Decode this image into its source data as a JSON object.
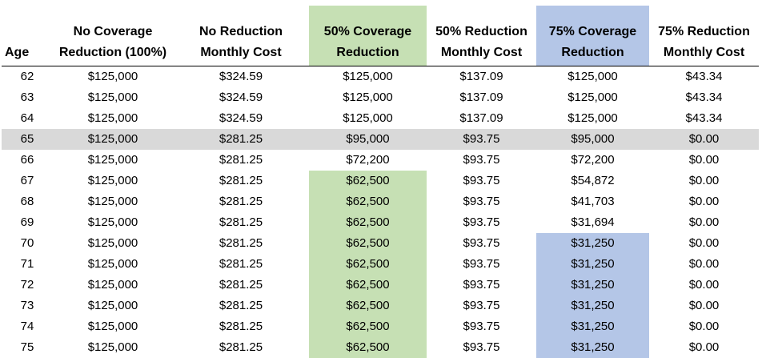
{
  "headers": [
    {
      "lines": [
        "Age"
      ],
      "class": "age"
    },
    {
      "lines": [
        "No Coverage",
        "Reduction (100%)"
      ],
      "class": ""
    },
    {
      "lines": [
        "No Reduction",
        "Monthly Cost"
      ],
      "class": ""
    },
    {
      "lines": [
        "50% Coverage",
        "Reduction"
      ],
      "class": "hdr-green"
    },
    {
      "lines": [
        "50% Reduction",
        "Monthly Cost"
      ],
      "class": ""
    },
    {
      "lines": [
        "75% Coverage",
        "Reduction"
      ],
      "class": "hdr-blue"
    },
    {
      "lines": [
        "75% Reduction",
        "Monthly Cost"
      ],
      "class": ""
    }
  ],
  "colors": {
    "green": "#c6e0b4",
    "blue": "#b4c6e7",
    "highlight_row": "#d9d9d9"
  },
  "rows": [
    {
      "cells": [
        "62",
        "$125,000",
        "$324.59",
        "$125,000",
        "$137.09",
        "$125,000",
        "$43.34"
      ],
      "highlight": false,
      "green": false,
      "blue": false
    },
    {
      "cells": [
        "63",
        "$125,000",
        "$324.59",
        "$125,000",
        "$137.09",
        "$125,000",
        "$43.34"
      ],
      "highlight": false,
      "green": false,
      "blue": false
    },
    {
      "cells": [
        "64",
        "$125,000",
        "$324.59",
        "$125,000",
        "$137.09",
        "$125,000",
        "$43.34"
      ],
      "highlight": false,
      "green": false,
      "blue": false
    },
    {
      "cells": [
        "65",
        "$125,000",
        "$281.25",
        "$95,000",
        "$93.75",
        "$95,000",
        "$0.00"
      ],
      "highlight": true,
      "green": false,
      "blue": false
    },
    {
      "cells": [
        "66",
        "$125,000",
        "$281.25",
        "$72,200",
        "$93.75",
        "$72,200",
        "$0.00"
      ],
      "highlight": false,
      "green": false,
      "blue": false
    },
    {
      "cells": [
        "67",
        "$125,000",
        "$281.25",
        "$62,500",
        "$93.75",
        "$54,872",
        "$0.00"
      ],
      "highlight": false,
      "green": true,
      "blue": false
    },
    {
      "cells": [
        "68",
        "$125,000",
        "$281.25",
        "$62,500",
        "$93.75",
        "$41,703",
        "$0.00"
      ],
      "highlight": false,
      "green": true,
      "blue": false
    },
    {
      "cells": [
        "69",
        "$125,000",
        "$281.25",
        "$62,500",
        "$93.75",
        "$31,694",
        "$0.00"
      ],
      "highlight": false,
      "green": true,
      "blue": false
    },
    {
      "cells": [
        "70",
        "$125,000",
        "$281.25",
        "$62,500",
        "$93.75",
        "$31,250",
        "$0.00"
      ],
      "highlight": false,
      "green": true,
      "blue": true
    },
    {
      "cells": [
        "71",
        "$125,000",
        "$281.25",
        "$62,500",
        "$93.75",
        "$31,250",
        "$0.00"
      ],
      "highlight": false,
      "green": true,
      "blue": true
    },
    {
      "cells": [
        "72",
        "$125,000",
        "$281.25",
        "$62,500",
        "$93.75",
        "$31,250",
        "$0.00"
      ],
      "highlight": false,
      "green": true,
      "blue": true
    },
    {
      "cells": [
        "73",
        "$125,000",
        "$281.25",
        "$62,500",
        "$93.75",
        "$31,250",
        "$0.00"
      ],
      "highlight": false,
      "green": true,
      "blue": true
    },
    {
      "cells": [
        "74",
        "$125,000",
        "$281.25",
        "$62,500",
        "$93.75",
        "$31,250",
        "$0.00"
      ],
      "highlight": false,
      "green": true,
      "blue": true
    },
    {
      "cells": [
        "75",
        "$125,000",
        "$281.25",
        "$62,500",
        "$93.75",
        "$31,250",
        "$0.00"
      ],
      "highlight": false,
      "green": true,
      "blue": true
    }
  ]
}
